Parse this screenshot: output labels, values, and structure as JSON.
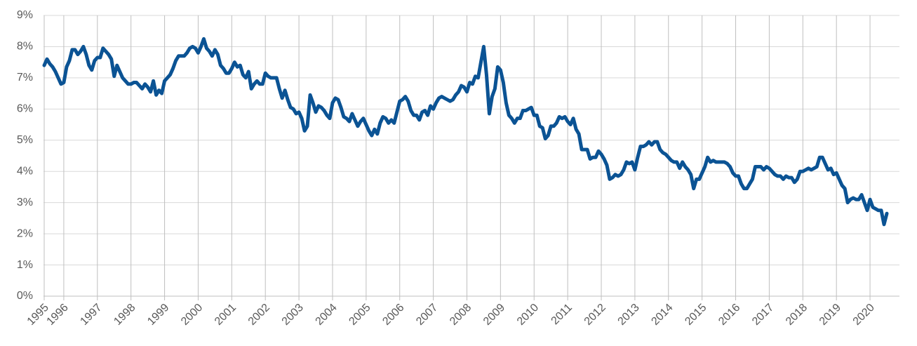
{
  "chart_data": {
    "type": "line",
    "categories": [
      "1995",
      null,
      null,
      null,
      null,
      null,
      null,
      "1996",
      null,
      null,
      null,
      null,
      null,
      null,
      null,
      null,
      null,
      null,
      null,
      "1997",
      null,
      null,
      null,
      null,
      null,
      null,
      null,
      null,
      null,
      null,
      null,
      "1998",
      null,
      null,
      null,
      null,
      null,
      null,
      null,
      null,
      null,
      null,
      null,
      "1999",
      null,
      null,
      null,
      null,
      null,
      null,
      null,
      null,
      null,
      null,
      null,
      "2000",
      null,
      null,
      null,
      null,
      null,
      null,
      null,
      null,
      null,
      null,
      null,
      "2001",
      null,
      null,
      null,
      null,
      null,
      null,
      null,
      null,
      null,
      null,
      null,
      "2002",
      null,
      null,
      null,
      null,
      null,
      null,
      null,
      null,
      null,
      null,
      null,
      "2003",
      null,
      null,
      null,
      null,
      null,
      null,
      null,
      null,
      null,
      null,
      null,
      "2004",
      null,
      null,
      null,
      null,
      null,
      null,
      null,
      null,
      null,
      null,
      null,
      "2005",
      null,
      null,
      null,
      null,
      null,
      null,
      null,
      null,
      null,
      null,
      null,
      "2006",
      null,
      null,
      null,
      null,
      null,
      null,
      null,
      null,
      null,
      null,
      null,
      "2007",
      null,
      null,
      null,
      null,
      null,
      null,
      null,
      null,
      null,
      null,
      null,
      "2008",
      null,
      null,
      null,
      null,
      null,
      null,
      null,
      null,
      null,
      null,
      null,
      "2009",
      null,
      null,
      null,
      null,
      null,
      null,
      null,
      null,
      null,
      null,
      null,
      "2010",
      null,
      null,
      null,
      null,
      null,
      null,
      null,
      null,
      null,
      null,
      null,
      "2011",
      null,
      null,
      null,
      null,
      null,
      null,
      null,
      null,
      null,
      null,
      null,
      "2012",
      null,
      null,
      null,
      null,
      null,
      null,
      null,
      null,
      null,
      null,
      null,
      "2013",
      null,
      null,
      null,
      null,
      null,
      null,
      null,
      null,
      null,
      null,
      null,
      "2014",
      null,
      null,
      null,
      null,
      null,
      null,
      null,
      null,
      null,
      null,
      null,
      "2015",
      null,
      null,
      null,
      null,
      null,
      null,
      null,
      null,
      null,
      null,
      null,
      "2016",
      null,
      null,
      null,
      null,
      null,
      null,
      null,
      null,
      null,
      null,
      null,
      "2017",
      null,
      null,
      null,
      null,
      null,
      null,
      null,
      null,
      null,
      null,
      null,
      "2018",
      null,
      null,
      null,
      null,
      null,
      null,
      null,
      null,
      null,
      null,
      null,
      "2019",
      null,
      null,
      null,
      null,
      null,
      null,
      null,
      null,
      null,
      null,
      null,
      "2020",
      null,
      null,
      null,
      null,
      null,
      null
    ],
    "values": [
      7.4,
      7.6,
      7.45,
      7.35,
      7.2,
      7.0,
      6.8,
      6.85,
      7.35,
      7.55,
      7.9,
      7.9,
      7.75,
      7.85,
      8.0,
      7.75,
      7.4,
      7.25,
      7.55,
      7.65,
      7.65,
      7.95,
      7.85,
      7.75,
      7.6,
      7.05,
      7.4,
      7.2,
      7.0,
      6.9,
      6.8,
      6.8,
      6.85,
      6.85,
      6.75,
      6.65,
      6.8,
      6.7,
      6.55,
      6.9,
      6.45,
      6.6,
      6.5,
      6.9,
      7.0,
      7.1,
      7.3,
      7.55,
      7.7,
      7.7,
      7.7,
      7.8,
      7.95,
      8.0,
      7.95,
      7.8,
      8.0,
      8.25,
      7.95,
      7.85,
      7.7,
      7.9,
      7.75,
      7.4,
      7.3,
      7.15,
      7.15,
      7.3,
      7.5,
      7.35,
      7.4,
      7.1,
      7.0,
      7.2,
      6.65,
      6.8,
      6.9,
      6.8,
      6.8,
      7.15,
      7.05,
      7.0,
      7.0,
      7.0,
      6.65,
      6.35,
      6.6,
      6.3,
      6.05,
      6.0,
      5.85,
      5.9,
      5.7,
      5.3,
      5.45,
      6.45,
      6.2,
      5.9,
      6.1,
      6.05,
      5.95,
      5.8,
      5.7,
      6.2,
      6.35,
      6.3,
      6.05,
      5.75,
      5.7,
      5.6,
      5.85,
      5.65,
      5.45,
      5.6,
      5.7,
      5.5,
      5.3,
      5.15,
      5.35,
      5.2,
      5.55,
      5.75,
      5.7,
      5.55,
      5.65,
      5.55,
      5.9,
      6.25,
      6.3,
      6.4,
      6.25,
      5.95,
      5.8,
      5.8,
      5.65,
      5.9,
      5.95,
      5.8,
      6.1,
      6.0,
      6.2,
      6.35,
      6.4,
      6.35,
      6.3,
      6.25,
      6.3,
      6.45,
      6.55,
      6.75,
      6.7,
      6.55,
      6.85,
      6.8,
      7.05,
      7.0,
      7.5,
      8.0,
      7.1,
      5.85,
      6.4,
      6.65,
      7.35,
      7.25,
      6.85,
      6.2,
      5.8,
      5.7,
      5.55,
      5.7,
      5.7,
      5.95,
      5.95,
      6.0,
      6.05,
      5.8,
      5.8,
      5.45,
      5.4,
      5.05,
      5.15,
      5.45,
      5.45,
      5.55,
      5.75,
      5.7,
      5.75,
      5.6,
      5.5,
      5.7,
      5.35,
      5.2,
      4.7,
      4.7,
      4.7,
      4.4,
      4.45,
      4.45,
      4.65,
      4.55,
      4.4,
      4.2,
      3.75,
      3.8,
      3.9,
      3.85,
      3.9,
      4.05,
      4.3,
      4.25,
      4.3,
      4.05,
      4.45,
      4.8,
      4.8,
      4.85,
      4.95,
      4.85,
      4.95,
      4.95,
      4.7,
      4.6,
      4.55,
      4.45,
      4.35,
      4.3,
      4.3,
      4.1,
      4.3,
      4.15,
      4.05,
      3.9,
      3.45,
      3.75,
      3.75,
      3.95,
      4.15,
      4.45,
      4.3,
      4.35,
      4.3,
      4.3,
      4.3,
      4.3,
      4.25,
      4.15,
      3.95,
      3.85,
      3.85,
      3.6,
      3.45,
      3.45,
      3.6,
      3.75,
      4.15,
      4.15,
      4.15,
      4.05,
      4.15,
      4.1,
      4.0,
      3.9,
      3.85,
      3.85,
      3.75,
      3.85,
      3.8,
      3.8,
      3.65,
      3.75,
      4.0,
      4.0,
      4.05,
      4.1,
      4.05,
      4.1,
      4.15,
      4.45,
      4.45,
      4.25,
      4.05,
      4.1,
      3.9,
      3.95,
      3.75,
      3.55,
      3.45,
      3.0,
      3.1,
      3.15,
      3.1,
      3.1,
      3.25,
      3.0,
      2.75,
      3.1,
      2.85,
      2.8,
      2.75,
      2.75,
      2.3,
      2.65
    ],
    "color": "#0b5394",
    "ylim": [
      0,
      9
    ],
    "yticks": [
      {
        "value": 0,
        "label": "0%"
      },
      {
        "value": 1,
        "label": "1%"
      },
      {
        "value": 2,
        "label": "2%"
      },
      {
        "value": 3,
        "label": "3%"
      },
      {
        "value": 4,
        "label": "4%"
      },
      {
        "value": 5,
        "label": "5%"
      },
      {
        "value": 6,
        "label": "6%"
      },
      {
        "value": 7,
        "label": "7%"
      },
      {
        "value": 8,
        "label": "8%"
      },
      {
        "value": 9,
        "label": "9%"
      }
    ],
    "grid": true
  }
}
